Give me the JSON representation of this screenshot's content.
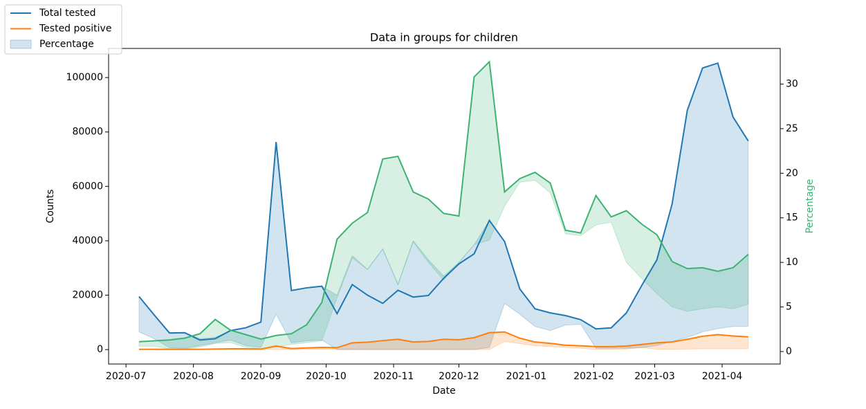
{
  "chart_data": {
    "type": "line",
    "title": "Data in groups for children",
    "xlabel": "Date",
    "ylabel": "Counts",
    "y2label": "Percentage",
    "y2label_color": "#3cb371",
    "categories": [
      null,
      null,
      null,
      null,
      null,
      null,
      null,
      null,
      null,
      null,
      null,
      null,
      null,
      null,
      null,
      null,
      null,
      null,
      null,
      null,
      null,
      null,
      null,
      null,
      null,
      null,
      null,
      null,
      null,
      null,
      null,
      null,
      null,
      null,
      null,
      null,
      null,
      null,
      null,
      null,
      null
    ],
    "xlim": [
      -2.0,
      42.1
    ],
    "xticks": [
      {
        "value": -0.857,
        "label": "2020-07"
      },
      {
        "value": 3.571,
        "label": "2020-08"
      },
      {
        "value": 8.0,
        "label": "2020-09"
      },
      {
        "value": 12.286,
        "label": "2020-10"
      },
      {
        "value": 16.714,
        "label": "2020-11"
      },
      {
        "value": 21.0,
        "label": "2020-12"
      },
      {
        "value": 25.429,
        "label": "2021-01"
      },
      {
        "value": 29.857,
        "label": "2021-02"
      },
      {
        "value": 33.857,
        "label": "2021-03"
      },
      {
        "value": 38.286,
        "label": "2021-04"
      }
    ],
    "ylim": [
      -5300,
      110700
    ],
    "yticks": [
      0,
      20000,
      40000,
      60000,
      80000,
      100000
    ],
    "y2lim": [
      -1.4,
      34.0
    ],
    "y2ticks": [
      0,
      5,
      10,
      15,
      20,
      25,
      30
    ],
    "series": [
      {
        "color": "#1f77b4",
        "values": [
          19500,
          12700,
          6100,
          6200,
          3500,
          4000,
          7000,
          8000,
          10100,
          76300,
          21700,
          22700,
          23300,
          13200,
          23900,
          20000,
          17000,
          21800,
          19300,
          19900,
          26200,
          31500,
          35200,
          47500,
          39700,
          22300,
          15000,
          13500,
          12500,
          11000,
          7600,
          8000,
          13500,
          23500,
          33000,
          53500,
          88000,
          103500,
          105300,
          85500,
          76700
        ],
        "ci_lower": [
          6500,
          4000,
          700,
          500,
          1500,
          2500,
          3500,
          1500,
          800,
          13000,
          2500,
          3200,
          3500,
          0,
          0,
          0,
          0,
          0,
          0,
          0,
          0,
          0,
          0,
          800,
          17000,
          13000,
          8500,
          7000,
          9000,
          9300,
          500,
          500,
          500,
          700,
          1500,
          3000,
          4500,
          6500,
          7700,
          8500,
          8500
        ],
        "ci_upper": [
          19500,
          12700,
          6100,
          6200,
          4000,
          4500,
          7000,
          8000,
          10100,
          76300,
          21700,
          22700,
          23300,
          20000,
          34500,
          29500,
          37000,
          24000,
          40000,
          33000,
          27000,
          32000,
          38500,
          47500,
          39700,
          22300,
          15000,
          13500,
          12500,
          11000,
          7600,
          8000,
          13500,
          23500,
          33000,
          53500,
          88000,
          103500,
          105300,
          85500,
          76700
        ]
      },
      {
        "color": "#ff7f0e",
        "values": [
          100,
          100,
          100,
          100,
          100,
          200,
          300,
          300,
          200,
          1300,
          400,
          600,
          800,
          700,
          2500,
          2700,
          3300,
          3800,
          2800,
          3000,
          3800,
          3600,
          4400,
          6200,
          6500,
          4200,
          2800,
          2300,
          1600,
          1400,
          1100,
          1100,
          1300,
          1900,
          2500,
          2800,
          3800,
          4900,
          5500,
          5000,
          4700
        ],
        "ci_lower": [
          0,
          0,
          0,
          0,
          0,
          0,
          0,
          0,
          0,
          0,
          0,
          0,
          0,
          0,
          0,
          0,
          0,
          0,
          0,
          0,
          0,
          0,
          0,
          0,
          3000,
          2200,
          1400,
          1100,
          800,
          500,
          100,
          100,
          200,
          800,
          100,
          100,
          200,
          300,
          300,
          300,
          300
        ]
      },
      {
        "color": "#3cb371",
        "axis": "y2",
        "values": [
          1.1,
          1.2,
          1.3,
          1.5,
          2.0,
          3.6,
          2.4,
          1.9,
          1.4,
          1.8,
          2.0,
          3.0,
          5.5,
          12.6,
          14.4,
          15.6,
          21.6,
          21.9,
          17.9,
          17.1,
          15.5,
          15.2,
          30.8,
          32.5,
          17.9,
          19.4,
          20.1,
          18.9,
          13.6,
          13.3,
          17.5,
          15.1,
          15.8,
          14.3,
          13.1,
          10.1,
          9.3,
          9.4,
          9.0,
          9.4,
          10.9
        ],
        "ci_lower": [
          0.6,
          0.6,
          0.3,
          0.3,
          0.5,
          0.9,
          1.0,
          0.5,
          0.3,
          0.5,
          0.8,
          1.0,
          1.2,
          6.0,
          10.5,
          9.2,
          11.5,
          7.5,
          12.3,
          10.0,
          8.0,
          10.0,
          12.0,
          12.5,
          16.3,
          19.0,
          19.2,
          17.8,
          13.2,
          13.0,
          14.2,
          14.5,
          10.0,
          8.2,
          6.5,
          5.0,
          4.5,
          4.8,
          5.0,
          4.8,
          5.3
        ]
      }
    ],
    "legend_loc": "upper left",
    "legend": [
      {
        "label": "Total tested",
        "marker": "line",
        "color": "#1f77b4"
      },
      {
        "label": "Tested positive",
        "marker": "line",
        "color": "#ff7f0e"
      },
      {
        "label": "Percentage",
        "marker": "patch",
        "color": "#1f77b4"
      }
    ]
  }
}
